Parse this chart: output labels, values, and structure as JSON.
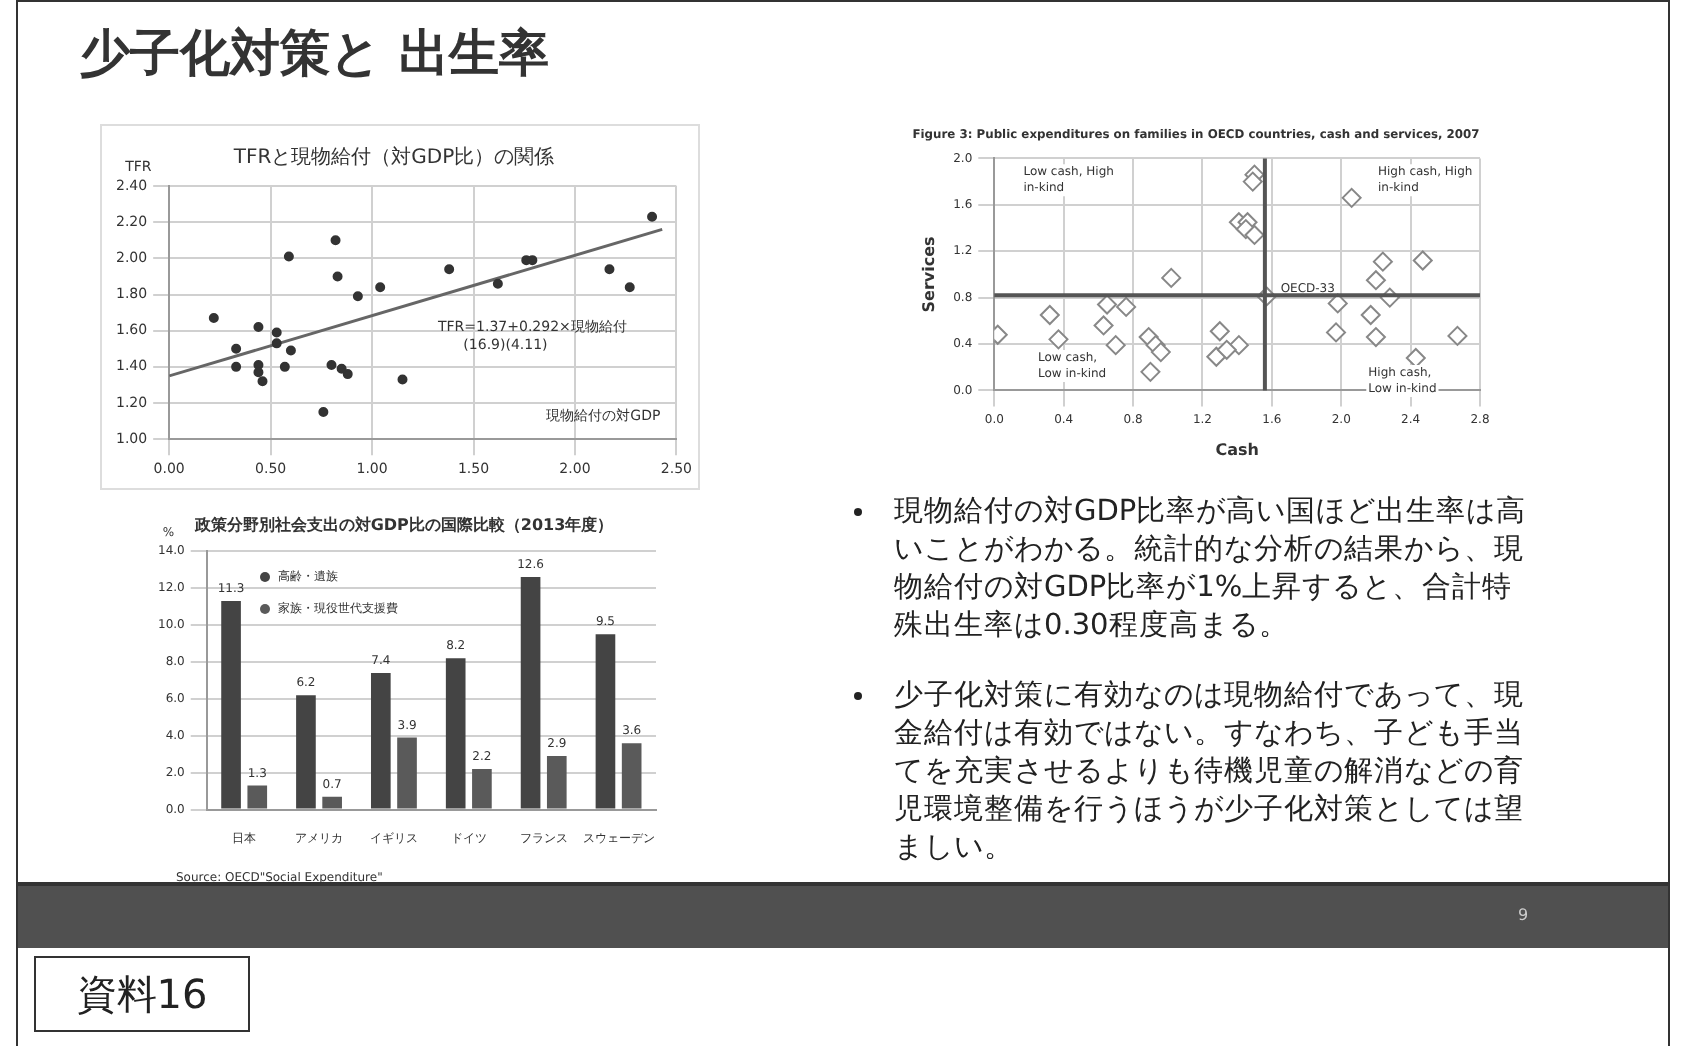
{
  "chart_data": [
    {
      "type": "other",
      "title": "少子化対策と 出生率",
      "annotations": [
        "現物給付の対GDP比率が高い国ほど出生率は高いことがわかる。統計的な分析の結果から、現物給付の対GDP比率が1%上昇すると、合計特殊出生率は0.30程度高まる。",
        "少子化対策に有効なのは現物給付であって、現金給付は有効ではない。すなわち、子ども手当てを充実させるよりも待機児童の解消などの育児環境整備を行うほうが少子化対策としては望ましい。",
        "9",
        "資料16"
      ]
    },
    {
      "type": "scatter",
      "title": "TFRと現物給付（対GDP比）の関係",
      "xlabel": "現物給付の対GDP",
      "ylabel": "TFR",
      "marker": "circle",
      "grid": true,
      "xlim": [
        0,
        2.5
      ],
      "xticks": [
        {
          "value": 0,
          "label": "0.00"
        },
        {
          "value": 0.5,
          "label": "0.50"
        },
        {
          "value": 1,
          "label": "1.00"
        },
        {
          "value": 1.5,
          "label": "1.50"
        },
        {
          "value": 2,
          "label": "2.00"
        },
        {
          "value": 2.5,
          "label": "2.50"
        }
      ],
      "ylim": [
        1,
        2.4
      ],
      "yticks": [
        {
          "value": 1,
          "label": "1.00"
        },
        {
          "value": 1.2,
          "label": "1.20"
        },
        {
          "value": 1.4,
          "label": "1.40"
        },
        {
          "value": 1.6,
          "label": "1.60"
        },
        {
          "value": 1.8,
          "label": "1.80"
        },
        {
          "value": 2,
          "label": "2.00"
        },
        {
          "value": 2.2,
          "label": "2.20"
        },
        {
          "value": 2.4,
          "label": "2.40"
        }
      ],
      "series": [
        {
          "type": "scatter",
          "color": "#333333",
          "x": [
            0.22,
            0.33,
            0.33,
            0.44,
            0.44,
            0.44,
            0.46,
            0.53,
            0.53,
            0.57,
            0.59,
            0.6,
            0.76,
            0.8,
            0.82,
            0.83,
            0.85,
            0.88,
            0.93,
            1.04,
            1.15,
            1.38,
            1.62,
            1.76,
            1.79,
            2.17,
            2.27,
            2.38
          ],
          "values": [
            1.67,
            1.5,
            1.4,
            1.62,
            1.41,
            1.37,
            1.32,
            1.59,
            1.53,
            1.4,
            2.01,
            1.49,
            1.15,
            1.41,
            2.1,
            1.9,
            1.39,
            1.36,
            1.79,
            1.84,
            1.33,
            1.94,
            1.86,
            1.99,
            1.99,
            1.94,
            1.84,
            2.23
          ]
        },
        {
          "type": "line",
          "color": "#666666",
          "marker": "none",
          "x": [
            0,
            2.43
          ],
          "values": [
            1.35,
            2.16
          ]
        }
      ],
      "annotations": [
        "TFR=1.37+0.292×現物給付",
        "(16.9)(4.11)"
      ]
    },
    {
      "type": "bar",
      "title": "政策分野別社会支出の対GDP比の国際比較（2013年度）",
      "ylabel": "%",
      "grid": "y",
      "legend": "top left",
      "data_labels": true,
      "categories": [
        "日本",
        "アメリカ",
        "イギリス",
        "ドイツ",
        "フランス",
        "スウェーデン"
      ],
      "ylim": [
        0,
        14
      ],
      "yticks": [
        {
          "value": 0,
          "label": "0.0"
        },
        {
          "value": 2,
          "label": "2.0"
        },
        {
          "value": 4,
          "label": "4.0"
        },
        {
          "value": 6,
          "label": "6.0"
        },
        {
          "value": 8,
          "label": "8.0"
        },
        {
          "value": 10,
          "label": "10.0"
        },
        {
          "value": 12,
          "label": "12.0"
        },
        {
          "value": 14,
          "label": "14.0"
        }
      ],
      "series": [
        {
          "name": "高齢・遺族",
          "color": "#444444",
          "values": [
            11.3,
            6.2,
            7.4,
            8.2,
            12.6,
            9.5
          ]
        },
        {
          "name": "家族・現役世代支援費",
          "color": "#5a5a5a",
          "values": [
            1.3,
            0.7,
            3.9,
            2.2,
            2.9,
            3.6
          ]
        }
      ],
      "annotations": [
        "Source: OECD\"Social Expenditure\""
      ]
    },
    {
      "type": "scatter",
      "title": "Figure 3: Public expenditures on families in OECD countries, cash and services, 2007",
      "xlabel": "Cash",
      "ylabel": "Services",
      "marker": "diamond",
      "grid": true,
      "xlim": [
        0,
        2.8
      ],
      "xticks": [
        {
          "value": 0,
          "label": "0.0"
        },
        0.4,
        0.8,
        1.2,
        1.6,
        {
          "value": 2,
          "label": "2.0"
        },
        2.4,
        2.8
      ],
      "ylim": [
        0,
        2
      ],
      "yticks": [
        {
          "value": 0,
          "label": "0.0"
        },
        0.4,
        0.8,
        1.2,
        1.6,
        {
          "value": 2,
          "label": "2.0"
        }
      ],
      "series": [
        {
          "type": "scatter",
          "color": "#888888",
          "x": [
            0.02,
            0.32,
            0.37,
            0.63,
            0.65,
            0.7,
            0.76,
            0.9,
            0.89,
            0.93,
            0.96,
            1.02,
            1.3,
            1.28,
            1.41,
            1.34,
            1.41,
            1.46,
            1.5,
            1.49,
            1.45,
            1.5,
            1.57,
            2.06,
            1.98,
            1.97,
            2.24,
            2.2,
            2.28,
            2.17,
            2.2,
            2.47,
            2.43,
            2.67
          ],
          "values": [
            0.48,
            0.65,
            0.44,
            0.56,
            0.74,
            0.39,
            0.72,
            0.16,
            0.46,
            0.39,
            0.33,
            0.97,
            0.51,
            0.29,
            0.39,
            0.35,
            1.45,
            1.45,
            1.86,
            1.8,
            1.39,
            1.34,
            0.81,
            1.66,
            0.75,
            0.5,
            1.11,
            0.95,
            0.8,
            0.65,
            0.46,
            1.12,
            0.28,
            0.47
          ]
        }
      ],
      "ref_lines": [
        {
          "axis": "x",
          "value": 1.56,
          "color": "#555555"
        },
        {
          "axis": "y",
          "value": 0.82,
          "color": "#555555"
        }
      ],
      "annotations": [
        "Low cash, High\nin-kind",
        "High cash, High\nin-kind",
        "Low cash,\nLow in-kind",
        "High cash,\nLow in-kind",
        {
          "text": "OECD-33",
          "x": 1.57,
          "y": 0.81
        }
      ]
    }
  ]
}
